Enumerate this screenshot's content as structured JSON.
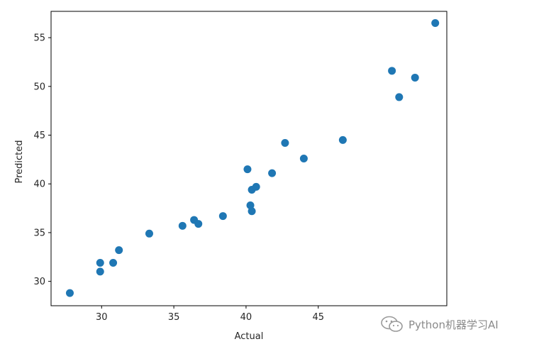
{
  "chart_data": {
    "type": "scatter",
    "title": "",
    "xlabel": "Actual",
    "ylabel": "Predicted",
    "xlim": [
      26.5,
      53.9
    ],
    "ylim": [
      27.5,
      57.7
    ],
    "xticks": [
      30,
      35,
      40,
      45
    ],
    "yticks": [
      30,
      35,
      40,
      45,
      50,
      55
    ],
    "grid": false,
    "legend": "none",
    "marker_color": "#1f77b4",
    "points": [
      {
        "x": 27.8,
        "y": 28.8
      },
      {
        "x": 29.9,
        "y": 31.9
      },
      {
        "x": 29.9,
        "y": 31.0
      },
      {
        "x": 30.8,
        "y": 31.9
      },
      {
        "x": 31.2,
        "y": 33.2
      },
      {
        "x": 33.3,
        "y": 34.9
      },
      {
        "x": 35.6,
        "y": 35.7
      },
      {
        "x": 36.4,
        "y": 36.3
      },
      {
        "x": 36.7,
        "y": 35.9
      },
      {
        "x": 38.4,
        "y": 36.7
      },
      {
        "x": 40.1,
        "y": 41.5
      },
      {
        "x": 40.3,
        "y": 37.8
      },
      {
        "x": 40.4,
        "y": 37.2
      },
      {
        "x": 40.4,
        "y": 39.4
      },
      {
        "x": 40.7,
        "y": 39.7
      },
      {
        "x": 41.8,
        "y": 41.1
      },
      {
        "x": 42.7,
        "y": 44.2
      },
      {
        "x": 44.0,
        "y": 42.6
      },
      {
        "x": 46.7,
        "y": 44.5
      },
      {
        "x": 50.1,
        "y": 51.6
      },
      {
        "x": 50.6,
        "y": 48.9
      },
      {
        "x": 51.7,
        "y": 50.9
      },
      {
        "x": 53.1,
        "y": 56.5
      }
    ]
  },
  "watermark": {
    "text": "Python机器学习AI",
    "icon": "wechat-icon"
  }
}
